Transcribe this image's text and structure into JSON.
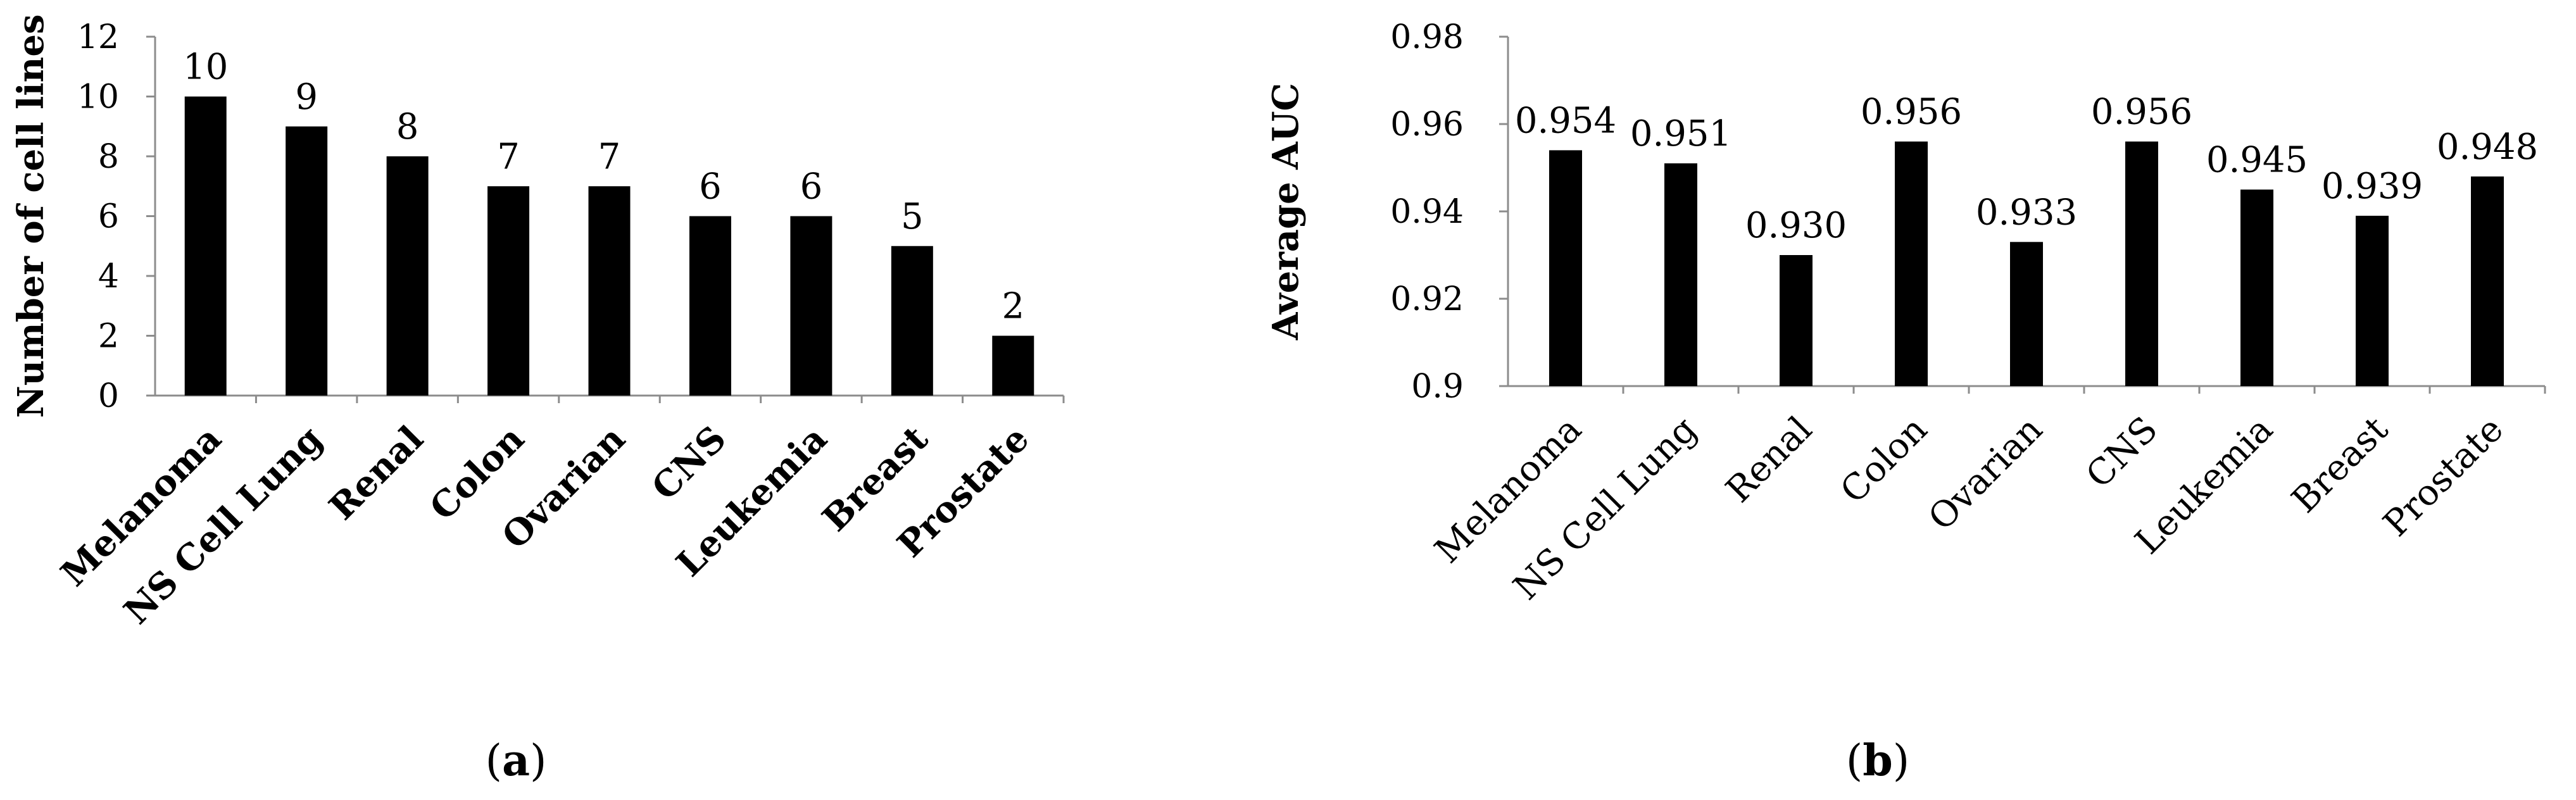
{
  "chart_data": [
    {
      "type": "bar",
      "panel_label": "a",
      "categories": [
        "Melanoma",
        "NS Cell Lung",
        "Renal",
        "Colon",
        "Ovarian",
        "CNS",
        "Leukemia",
        "Breast",
        "Prostate"
      ],
      "values": [
        10,
        9,
        8,
        7,
        7,
        6,
        6,
        5,
        2
      ],
      "value_labels": [
        "10",
        "9",
        "8",
        "7",
        "7",
        "6",
        "6",
        "5",
        "2"
      ],
      "ylabel": "Number of cell lines",
      "ylim": [
        0,
        12
      ],
      "yticks": [
        0,
        2,
        4,
        6,
        8,
        10,
        12
      ],
      "ytick_labels": [
        "0",
        "2",
        "4",
        "6",
        "8",
        "10",
        "12"
      ],
      "bar_color": "#000000",
      "grid": false,
      "legend": "none"
    },
    {
      "type": "bar",
      "panel_label": "b",
      "categories": [
        "Melanoma",
        "NS Cell Lung",
        "Renal",
        "Colon",
        "Ovarian",
        "CNS",
        "Leukemia",
        "Breast",
        "Prostate"
      ],
      "values": [
        0.954,
        0.951,
        0.93,
        0.956,
        0.933,
        0.956,
        0.945,
        0.939,
        0.948
      ],
      "value_labels": [
        "0.954",
        "0.951",
        "0.930",
        "0.956",
        "0.933",
        "0.956",
        "0.945",
        "0.939",
        "0.948"
      ],
      "ylabel": "Average AUC",
      "ylim": [
        0.9,
        0.98
      ],
      "yticks": [
        0.9,
        0.92,
        0.94,
        0.96,
        0.98
      ],
      "ytick_labels": [
        "0.9",
        "0.92",
        "0.94",
        "0.96",
        "0.98"
      ],
      "bar_color": "#000000",
      "grid": false,
      "legend": "none"
    }
  ]
}
